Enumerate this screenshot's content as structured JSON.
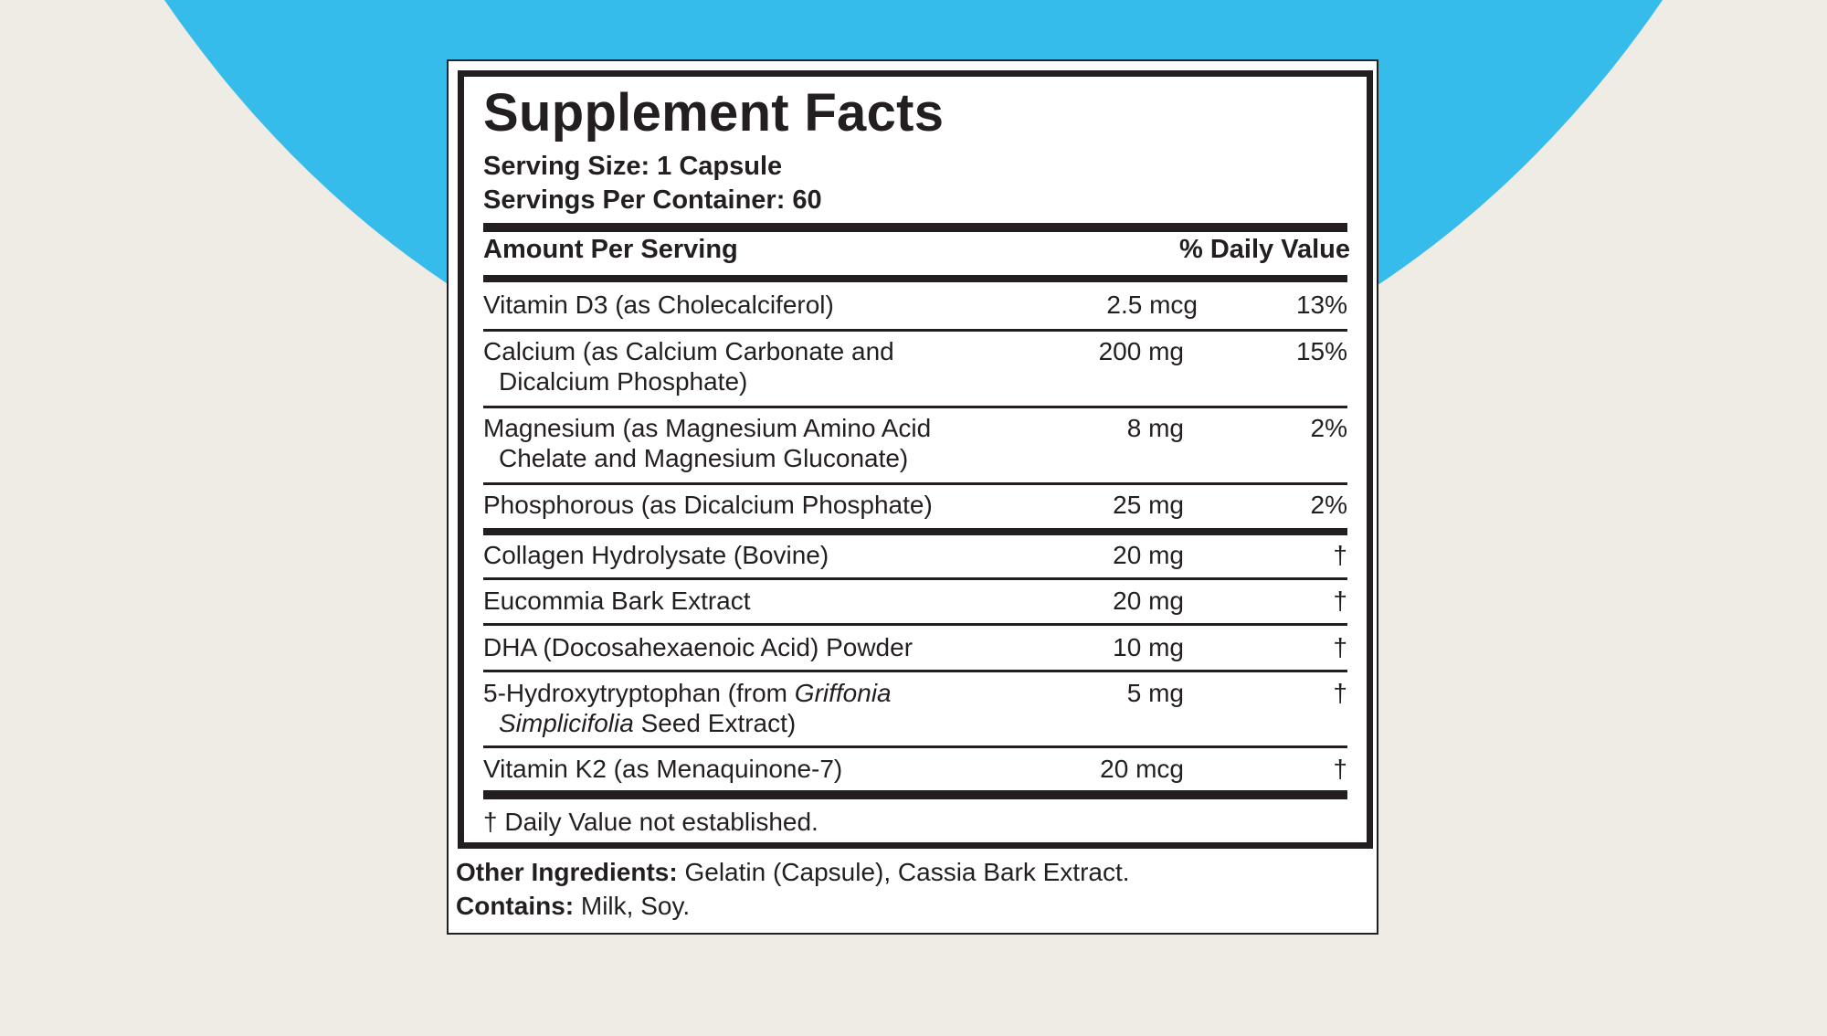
{
  "colors": {
    "background": "#efebe5",
    "accent_arc": "#36bceb",
    "panel": "#ffffff",
    "ink": "#231f20"
  },
  "label": {
    "title": "Supplement Facts",
    "serving_size": "Serving Size: 1 Capsule",
    "servings_per_container": "Servings Per Container: 60",
    "header_amount": "Amount Per Serving",
    "header_daily_value": "% Daily Value",
    "rows": [
      {
        "line1": "Vitamin D3 (as Cholecalciferol)",
        "line2": "",
        "amount": "2.5 mcg",
        "dv": "13%"
      },
      {
        "line1": "Calcium (as Calcium Carbonate and",
        "line2": "Dicalcium Phosphate)",
        "amount": "200 mg",
        "dv": "15%"
      },
      {
        "line1": "Magnesium (as Magnesium Amino Acid",
        "line2": "Chelate and Magnesium Gluconate)",
        "amount": "8 mg",
        "dv": "2%"
      },
      {
        "line1": "Phosphorous (as Dicalcium Phosphate)",
        "line2": "",
        "amount": "25 mg",
        "dv": "2%"
      },
      {
        "line1": "Collagen Hydrolysate (Bovine)",
        "line2": "",
        "amount": "20 mg",
        "dv": "†"
      },
      {
        "line1": "Eucommia Bark Extract",
        "line2": "",
        "amount": "20 mg",
        "dv": "†"
      },
      {
        "line1": "DHA (Docosahexaenoic Acid) Powder",
        "line2": "",
        "amount": "10 mg",
        "dv": "†"
      },
      {
        "line1_prefix": "5-Hydroxytryptophan (from ",
        "line1_italic": "Griffonia",
        "line2_italic": "Simplicifolia",
        "line2_suffix": " Seed Extract)",
        "amount": "5 mg",
        "dv": "†"
      },
      {
        "line1": "Vitamin K2 (as Menaquinone-7)",
        "line2": "",
        "amount": "20 mcg",
        "dv": "†"
      }
    ],
    "footnote": "† Daily Value not established."
  },
  "other_ingredients": {
    "label": "Other Ingredients:",
    "text": " Gelatin (Capsule), Cassia Bark Extract."
  },
  "contains": {
    "label": "Contains:",
    "text": " Milk, Soy."
  }
}
